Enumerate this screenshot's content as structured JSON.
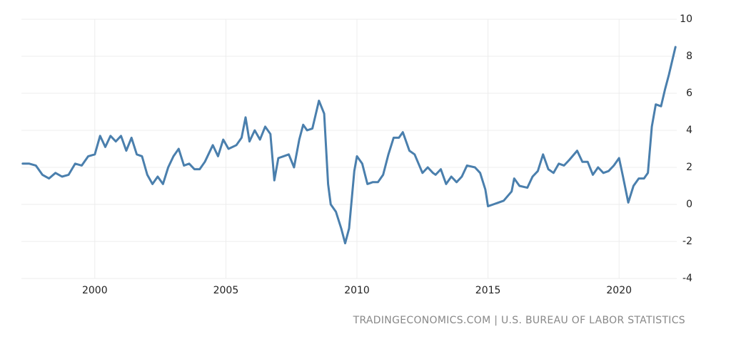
{
  "chart_data": {
    "type": "line",
    "source": "TRADINGECONOMICS.COM | U.S. BUREAU OF LABOR STATISTICS",
    "x": [
      1997.25,
      1997.5,
      1997.75,
      1998.0,
      1998.25,
      1998.5,
      1998.75,
      1999.0,
      1999.25,
      1999.5,
      1999.75,
      2000.0,
      2000.2,
      2000.4,
      2000.6,
      2000.8,
      2001.0,
      2001.2,
      2001.4,
      2001.6,
      2001.8,
      2002.0,
      2002.2,
      2002.4,
      2002.6,
      2002.8,
      2003.0,
      2003.2,
      2003.4,
      2003.6,
      2003.8,
      2004.0,
      2004.2,
      2004.5,
      2004.7,
      2004.9,
      2005.1,
      2005.4,
      2005.6,
      2005.75,
      2005.9,
      2006.1,
      2006.3,
      2006.5,
      2006.7,
      2006.85,
      2007.0,
      2007.2,
      2007.4,
      2007.6,
      2007.8,
      2007.95,
      2008.1,
      2008.3,
      2008.55,
      2008.75,
      2008.9,
      2009.0,
      2009.2,
      2009.4,
      2009.55,
      2009.7,
      2009.9,
      2010.0,
      2010.2,
      2010.4,
      2010.6,
      2010.8,
      2011.0,
      2011.2,
      2011.4,
      2011.6,
      2011.75,
      2012.0,
      2012.2,
      2012.5,
      2012.7,
      2012.9,
      2013.0,
      2013.2,
      2013.4,
      2013.6,
      2013.8,
      2014.0,
      2014.2,
      2014.5,
      2014.7,
      2014.9,
      2015.0,
      2015.2,
      2015.4,
      2015.6,
      2015.9,
      2016.0,
      2016.2,
      2016.5,
      2016.7,
      2016.9,
      2017.1,
      2017.3,
      2017.5,
      2017.7,
      2017.9,
      2018.1,
      2018.4,
      2018.6,
      2018.8,
      2019.0,
      2019.2,
      2019.4,
      2019.6,
      2019.8,
      2020.0,
      2020.15,
      2020.35,
      2020.55,
      2020.75,
      2020.95,
      2021.1,
      2021.25,
      2021.4,
      2021.6,
      2021.75,
      2021.9,
      2022.05,
      2022.15
    ],
    "series": [
      {
        "color": "#4a7fad",
        "values": [
          2.2,
          2.2,
          2.1,
          1.6,
          1.4,
          1.7,
          1.5,
          1.6,
          2.2,
          2.1,
          2.6,
          2.7,
          3.7,
          3.1,
          3.7,
          3.4,
          3.7,
          2.9,
          3.6,
          2.7,
          2.6,
          1.6,
          1.1,
          1.5,
          1.1,
          2.0,
          2.6,
          3.0,
          2.1,
          2.2,
          1.9,
          1.9,
          2.3,
          3.2,
          2.6,
          3.5,
          3.0,
          3.2,
          3.6,
          4.7,
          3.4,
          4.0,
          3.5,
          4.2,
          3.8,
          1.3,
          2.5,
          2.6,
          2.7,
          2.0,
          3.5,
          4.3,
          4.0,
          4.1,
          5.6,
          4.9,
          1.1,
          0.0,
          -0.4,
          -1.3,
          -2.1,
          -1.3,
          1.8,
          2.6,
          2.2,
          1.1,
          1.2,
          1.2,
          1.6,
          2.7,
          3.6,
          3.6,
          3.9,
          2.9,
          2.7,
          1.7,
          2.0,
          1.7,
          1.6,
          1.9,
          1.1,
          1.5,
          1.2,
          1.5,
          2.1,
          2.0,
          1.7,
          0.8,
          -0.1,
          0.0,
          0.1,
          0.2,
          0.7,
          1.4,
          1.0,
          0.9,
          1.5,
          1.8,
          2.7,
          1.9,
          1.7,
          2.2,
          2.1,
          2.4,
          2.9,
          2.3,
          2.3,
          1.6,
          2.0,
          1.7,
          1.8,
          2.1,
          2.5,
          1.5,
          0.1,
          1.0,
          1.4,
          1.4,
          1.7,
          4.2,
          5.4,
          5.3,
          6.2,
          7.0,
          7.9,
          8.5
        ]
      }
    ],
    "xlim": [
      1997.2,
      2022.2
    ],
    "xticks": [
      2000,
      2005,
      2010,
      2015,
      2020
    ],
    "ylim": [
      -4,
      10
    ],
    "yticks": [
      -4,
      -2,
      0,
      2,
      4,
      6,
      8,
      10
    ],
    "grid": true
  }
}
